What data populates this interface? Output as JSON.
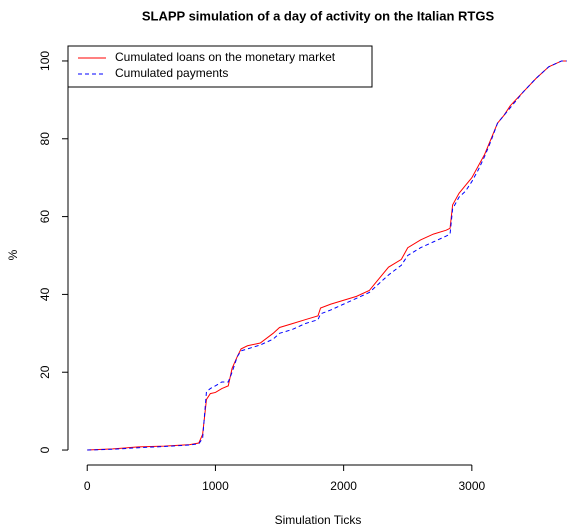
{
  "chart_data": {
    "type": "line",
    "title": "SLAPP simulation of a day of activity on the Italian RTGS",
    "x_label": "Simulation Ticks",
    "y_label": "%",
    "x": [
      0,
      200,
      400,
      600,
      800,
      870,
      900,
      930,
      960,
      1000,
      1050,
      1100,
      1130,
      1170,
      1200,
      1250,
      1350,
      1450,
      1500,
      1600,
      1700,
      1800,
      1820,
      1900,
      2000,
      2100,
      2200,
      2250,
      2300,
      2350,
      2450,
      2500,
      2600,
      2700,
      2800,
      2830,
      2850,
      2900,
      2950,
      3000,
      3050,
      3100,
      3150,
      3200,
      3250,
      3300,
      3400,
      3500,
      3600,
      3700,
      3740
    ],
    "series": [
      {
        "name": "Cumulated loans on the monetary market",
        "color": "#ff0000",
        "dash": false,
        "values": [
          0,
          0.3,
          0.8,
          1,
          1.4,
          1.8,
          4,
          13,
          14.5,
          14.8,
          15.8,
          16.5,
          21,
          24,
          26,
          26.8,
          27.5,
          30,
          31.5,
          32.5,
          33.5,
          34.5,
          36.5,
          37.5,
          38.5,
          39.5,
          41,
          43,
          45,
          47,
          49,
          52,
          54,
          55.5,
          56.5,
          57,
          63,
          66,
          68,
          70,
          73,
          76,
          80,
          84,
          86,
          88.5,
          92,
          95.5,
          98.5,
          100,
          100
        ]
      },
      {
        "name": "Cumulated payments",
        "color": "#0000ff",
        "dash": true,
        "values": [
          0,
          0.2,
          0.6,
          0.9,
          1.3,
          1.6,
          3,
          15,
          15.8,
          16.5,
          17.5,
          17.5,
          20,
          24,
          25.5,
          26,
          27,
          28.5,
          30,
          31,
          32.5,
          33.5,
          35,
          36,
          37.5,
          39,
          40.5,
          42,
          43.5,
          45,
          47.5,
          50,
          52,
          53.5,
          55,
          55.5,
          62,
          65,
          66.5,
          69,
          72,
          75.5,
          79.5,
          84,
          86,
          88,
          92,
          95.5,
          98.5,
          100,
          100
        ]
      }
    ],
    "xlim": [
      -150,
      3750
    ],
    "ylim": [
      -4,
      104
    ],
    "xticks": [
      0,
      1000,
      2000,
      3000
    ],
    "yticks": [
      0,
      20,
      40,
      60,
      80,
      100
    ],
    "legend": "top-left",
    "grid": false
  }
}
